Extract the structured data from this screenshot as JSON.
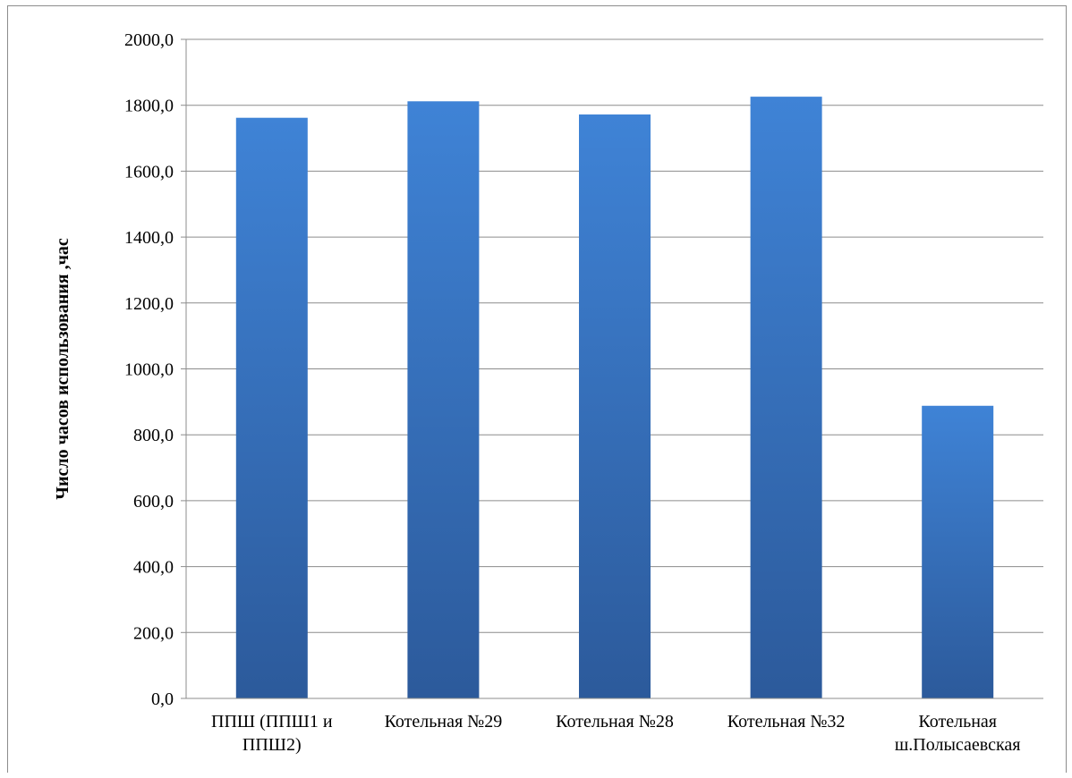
{
  "chart_data": {
    "type": "bar",
    "title": "",
    "xlabel": "",
    "ylabel": "Число часов использования ,час",
    "ylim": [
      0,
      2000
    ],
    "yticks": [
      "0,0",
      "200,0",
      "400,0",
      "600,0",
      "800,0",
      "1000,0",
      "1200,0",
      "1400,0",
      "1600,0",
      "1800,0",
      "2000,0"
    ],
    "categories": [
      [
        "ППШ (ППШ1 и",
        "ППШ2)"
      ],
      [
        "Котельная №29"
      ],
      [
        "Котельная №28"
      ],
      [
        "Котельная №32"
      ],
      [
        "Котельная",
        "ш.Полысаевская"
      ]
    ],
    "values": [
      1762,
      1812,
      1772,
      1826,
      888
    ],
    "grid": true,
    "legend": "none",
    "bar_color_top": "#3f83d6",
    "bar_color_bottom": "#2c5a9b"
  }
}
